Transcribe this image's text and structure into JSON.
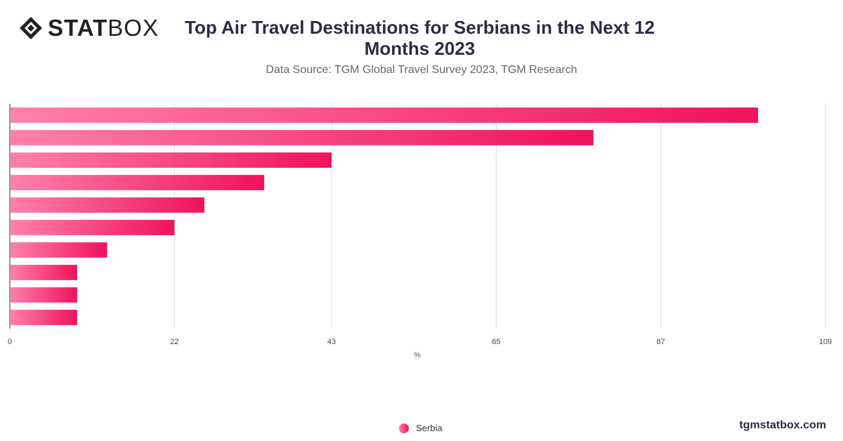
{
  "brand": {
    "logo_bold": "STAT",
    "logo_light": "BOX",
    "icon": "statbox-diamond-icon",
    "site": "tgmstatbox.com"
  },
  "header": {
    "title": "Top Air Travel Destinations for Serbians in the Next 12 Months 2023",
    "subtitle": "Data Source: TGM Global Travel Survey 2023, TGM Research"
  },
  "colors": {
    "bar_start": "#ff80ab",
    "bar_end": "#f0125c",
    "grid": "#d9d9d9",
    "axis_text": "#444444"
  },
  "chart_data": {
    "type": "bar",
    "orientation": "horizontal",
    "title": "Top Air Travel Destinations for Serbians in the Next 12 Months 2023",
    "subtitle": "Data Source: TGM Global Travel Survey 2023, TGM Research",
    "xlabel": "%",
    "ylabel": "",
    "xlim": [
      0,
      109
    ],
    "xticks": [
      0,
      22,
      43,
      65,
      87,
      109
    ],
    "grid": true,
    "legend_position": "bottom",
    "series": [
      {
        "name": "Serbia",
        "values": [
          100,
          78,
          43,
          34,
          26,
          22,
          13,
          9,
          9,
          9
        ]
      }
    ]
  },
  "legend": {
    "label": "Serbia"
  }
}
